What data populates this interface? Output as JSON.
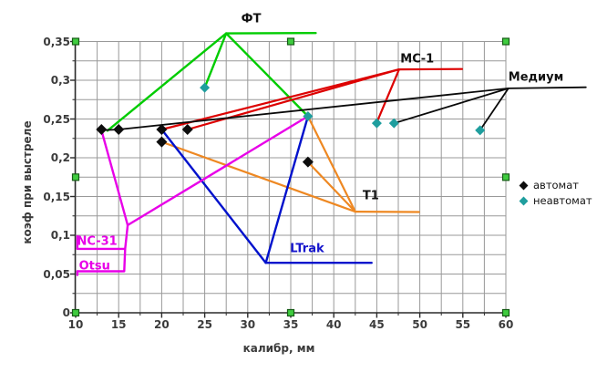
{
  "chart_data": {
    "type": "scatter",
    "title": "",
    "xlabel": "калибр, мм",
    "ylabel": "коэф при выстреле",
    "xlim": [
      10,
      60
    ],
    "ylim": [
      0,
      0.35
    ],
    "grid": {
      "x_step": 2.5,
      "y_step": 0.025,
      "color": "#999999",
      "on": true
    },
    "x_ticks": [
      {
        "v": 10,
        "t": "10"
      },
      {
        "v": 15,
        "t": "15"
      },
      {
        "v": 20,
        "t": "20"
      },
      {
        "v": 25,
        "t": "25"
      },
      {
        "v": 30,
        "t": "30"
      },
      {
        "v": 35,
        "t": "35"
      },
      {
        "v": 40,
        "t": "40"
      },
      {
        "v": 45,
        "t": "45"
      },
      {
        "v": 50,
        "t": "50"
      },
      {
        "v": 55,
        "t": "55"
      },
      {
        "v": 60,
        "t": "60"
      }
    ],
    "y_ticks": [
      {
        "v": 0,
        "t": "0"
      },
      {
        "v": 0.05,
        "t": "0,05"
      },
      {
        "v": 0.1,
        "t": "0,1"
      },
      {
        "v": 0.15,
        "t": "0,15"
      },
      {
        "v": 0.2,
        "t": "0,2"
      },
      {
        "v": 0.25,
        "t": "0,25"
      },
      {
        "v": 0.3,
        "t": "0,3"
      },
      {
        "v": 0.35,
        "t": "0,35"
      }
    ],
    "line_series": [
      {
        "id": "ft",
        "name": "ФТ",
        "color": "#00cc00",
        "width": 2.4,
        "label": {
          "text": "ФТ",
          "x": 30.4,
          "y": 0.379,
          "color": "#111111"
        },
        "paths": [
          [
            [
              13.7,
              0.235
            ],
            [
              27.5,
              0.3605
            ]
          ],
          [
            [
              27.5,
              0.3605
            ],
            [
              25,
              0.2905
            ]
          ],
          [
            [
              27.5,
              0.3605
            ],
            [
              37,
              0.2535
            ]
          ],
          [
            [
              27.5,
              0.3605
            ],
            [
              37.9,
              0.361
            ]
          ]
        ]
      },
      {
        "id": "ms1",
        "name": "МС-1",
        "color": "#dd0000",
        "width": 2.2,
        "label": {
          "text": "МС-1",
          "x": 49.7,
          "y": 0.3265,
          "color": "#111111"
        },
        "paths": [
          [
            [
              20,
              0.2365
            ],
            [
              47.6,
              0.314
            ]
          ],
          [
            [
              23,
              0.2365
            ],
            [
              47.6,
              0.314
            ]
          ],
          [
            [
              47.6,
              0.314
            ],
            [
              45,
              0.2455
            ]
          ],
          [
            [
              47.6,
              0.314
            ],
            [
              54.9,
              0.3145
            ]
          ]
        ]
      },
      {
        "id": "medium",
        "name": "Медиум",
        "color": "#0a0a0a",
        "width": 1.8,
        "label": {
          "text": "Медиум",
          "x": 63.5,
          "y": 0.304,
          "color": "#111111"
        },
        "paths": [
          [
            [
              13,
              0.2355
            ],
            [
              15,
              0.2365
            ],
            [
              60.3,
              0.2895
            ]
          ],
          [
            [
              47,
              0.2445
            ],
            [
              60.3,
              0.2895
            ]
          ],
          [
            [
              57,
              0.2355
            ],
            [
              60.3,
              0.2895
            ]
          ],
          [
            [
              60.3,
              0.2895
            ],
            [
              69.3,
              0.291
            ]
          ]
        ]
      },
      {
        "id": "t1",
        "name": "T1",
        "color": "#ee8822",
        "width": 2.2,
        "label": {
          "text": "T1",
          "x": 44.3,
          "y": 0.151,
          "color": "#111111"
        },
        "paths": [
          [
            [
              20,
              0.2205
            ],
            [
              42.5,
              0.1305
            ]
          ],
          [
            [
              37,
              0.1945
            ],
            [
              42.5,
              0.1305
            ]
          ],
          [
            [
              37,
              0.2535
            ],
            [
              42.5,
              0.1305
            ]
          ],
          [
            [
              42.5,
              0.1305
            ],
            [
              49.9,
              0.13
            ]
          ]
        ]
      },
      {
        "id": "ltrak",
        "name": "LTrak",
        "color": "#0011cc",
        "width": 2.4,
        "label": {
          "text": "LTrak",
          "x": 36.9,
          "y": 0.082,
          "color": "#1515cc"
        },
        "paths": [
          [
            [
              20,
              0.2365
            ],
            [
              32.1,
              0.0645
            ]
          ],
          [
            [
              37,
              0.2535
            ],
            [
              32.1,
              0.0645
            ]
          ],
          [
            [
              32.1,
              0.0645
            ],
            [
              44.4,
              0.0645
            ]
          ]
        ]
      },
      {
        "id": "nc31",
        "name": "NC-31",
        "color": "#e800e8",
        "width": 2.4,
        "label": {
          "text": "NC-31",
          "x": 12.5,
          "y": 0.092,
          "color": "#e800e8"
        },
        "paths": [
          [
            [
              13,
              0.2355
            ],
            [
              16.05,
              0.113
            ]
          ],
          [
            [
              16.05,
              0.113
            ],
            [
              37,
              0.2535
            ]
          ],
          [
            [
              16.05,
              0.113
            ],
            [
              15.75,
              0.0825
            ],
            [
              10.2,
              0.0825
            ]
          ],
          [
            [
              10.2,
              0.0825
            ],
            [
              10.2,
              0.099
            ]
          ]
        ]
      },
      {
        "id": "otsu",
        "name": "Otsu",
        "color": "#e800e8",
        "width": 2.4,
        "label": {
          "text": "Otsu",
          "x": 12.2,
          "y": 0.06,
          "color": "#e800e8"
        },
        "paths": [
          [
            [
              15.75,
              0.0825
            ],
            [
              15.65,
              0.0535
            ],
            [
              10.2,
              0.0535
            ]
          ],
          [
            [
              10.2,
              0.0535
            ],
            [
              10.2,
              0.0487
            ]
          ]
        ]
      }
    ],
    "point_series": [
      {
        "id": "avtomat",
        "name": "автомат",
        "color": "#0d0d0d",
        "marker": "diamond",
        "size": 6,
        "points": [
          [
            13,
            0.2365
          ],
          [
            15,
            0.2365
          ],
          [
            20,
            0.2365
          ],
          [
            23,
            0.2365
          ],
          [
            20,
            0.2205
          ],
          [
            37,
            0.1945
          ]
        ]
      },
      {
        "id": "neavtomat",
        "name": "неавтомат",
        "color": "#1f9e9e",
        "marker": "diamond",
        "size": 5.5,
        "points": [
          [
            25,
            0.2905
          ],
          [
            37,
            0.2535
          ],
          [
            45,
            0.2445
          ],
          [
            47,
            0.2445
          ],
          [
            57,
            0.2355
          ]
        ]
      }
    ],
    "legend": {
      "position": "right-middle",
      "items": [
        {
          "id": "avtomat",
          "label": "автомат",
          "color": "#0d0d0d"
        },
        {
          "id": "neavtomat",
          "label": "неавтомат",
          "color": "#1f9e9e"
        }
      ]
    }
  },
  "selection_handles": {
    "fill": "#3fcc3f",
    "border": "#155c15"
  },
  "axis_style": {
    "axis_color": "#2a2a2a",
    "tick_label_color": "#3b3b3b"
  }
}
